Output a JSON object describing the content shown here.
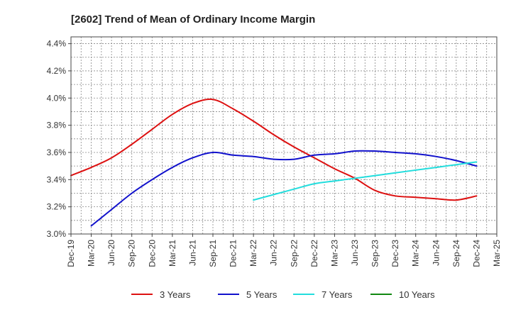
{
  "chart_data": {
    "type": "line",
    "title": "[2602]  Trend of Mean of Ordinary Income Margin",
    "xlabel": "",
    "ylabel": "",
    "x_ticks": [
      "Dec-19",
      "Mar-20",
      "Jun-20",
      "Sep-20",
      "Dec-20",
      "Mar-21",
      "Jun-21",
      "Sep-21",
      "Dec-21",
      "Mar-22",
      "Jun-22",
      "Sep-22",
      "Dec-22",
      "Mar-23",
      "Jun-23",
      "Sep-23",
      "Dec-23",
      "Mar-24",
      "Jun-24",
      "Sep-24",
      "Dec-24",
      "Mar-25"
    ],
    "y_ticks": [
      "3.0%",
      "3.2%",
      "3.4%",
      "3.6%",
      "3.8%",
      "4.0%",
      "4.2%",
      "4.4%"
    ],
    "ylim": [
      3.0,
      4.45
    ],
    "grid": true,
    "legend_position": "bottom",
    "series": [
      {
        "name": "3 Years",
        "color": "#dd1111",
        "points": [
          [
            "Dec-19",
            3.43
          ],
          [
            "Mar-20",
            3.49
          ],
          [
            "Jun-20",
            3.56
          ],
          [
            "Sep-20",
            3.66
          ],
          [
            "Dec-20",
            3.77
          ],
          [
            "Mar-21",
            3.88
          ],
          [
            "Jun-21",
            3.96
          ],
          [
            "Sep-21",
            3.99
          ],
          [
            "Dec-21",
            3.92
          ],
          [
            "Mar-22",
            3.83
          ],
          [
            "Jun-22",
            3.73
          ],
          [
            "Sep-22",
            3.64
          ],
          [
            "Dec-22",
            3.56
          ],
          [
            "Mar-23",
            3.48
          ],
          [
            "Jun-23",
            3.41
          ],
          [
            "Sep-23",
            3.32
          ],
          [
            "Dec-23",
            3.28
          ],
          [
            "Mar-24",
            3.27
          ],
          [
            "Jun-24",
            3.26
          ],
          [
            "Sep-24",
            3.25
          ],
          [
            "Dec-24",
            3.28
          ]
        ]
      },
      {
        "name": "5 Years",
        "color": "#1111cc",
        "points": [
          [
            "Mar-20",
            3.06
          ],
          [
            "Jun-20",
            3.18
          ],
          [
            "Sep-20",
            3.3
          ],
          [
            "Dec-20",
            3.4
          ],
          [
            "Mar-21",
            3.49
          ],
          [
            "Jun-21",
            3.56
          ],
          [
            "Sep-21",
            3.6
          ],
          [
            "Dec-21",
            3.58
          ],
          [
            "Mar-22",
            3.57
          ],
          [
            "Jun-22",
            3.55
          ],
          [
            "Sep-22",
            3.55
          ],
          [
            "Dec-22",
            3.58
          ],
          [
            "Mar-23",
            3.59
          ],
          [
            "Jun-23",
            3.61
          ],
          [
            "Sep-23",
            3.61
          ],
          [
            "Dec-23",
            3.6
          ],
          [
            "Mar-24",
            3.59
          ],
          [
            "Jun-24",
            3.57
          ],
          [
            "Sep-24",
            3.54
          ],
          [
            "Dec-24",
            3.5
          ]
        ]
      },
      {
        "name": "7 Years",
        "color": "#22dddd",
        "points": [
          [
            "Mar-22",
            3.25
          ],
          [
            "Jun-22",
            3.29
          ],
          [
            "Sep-22",
            3.33
          ],
          [
            "Dec-22",
            3.37
          ],
          [
            "Mar-23",
            3.39
          ],
          [
            "Jun-23",
            3.41
          ],
          [
            "Sep-23",
            3.43
          ],
          [
            "Dec-23",
            3.45
          ],
          [
            "Mar-24",
            3.47
          ],
          [
            "Jun-24",
            3.49
          ],
          [
            "Sep-24",
            3.51
          ],
          [
            "Dec-24",
            3.53
          ]
        ]
      },
      {
        "name": "10 Years",
        "color": "#118811",
        "points": []
      }
    ]
  }
}
